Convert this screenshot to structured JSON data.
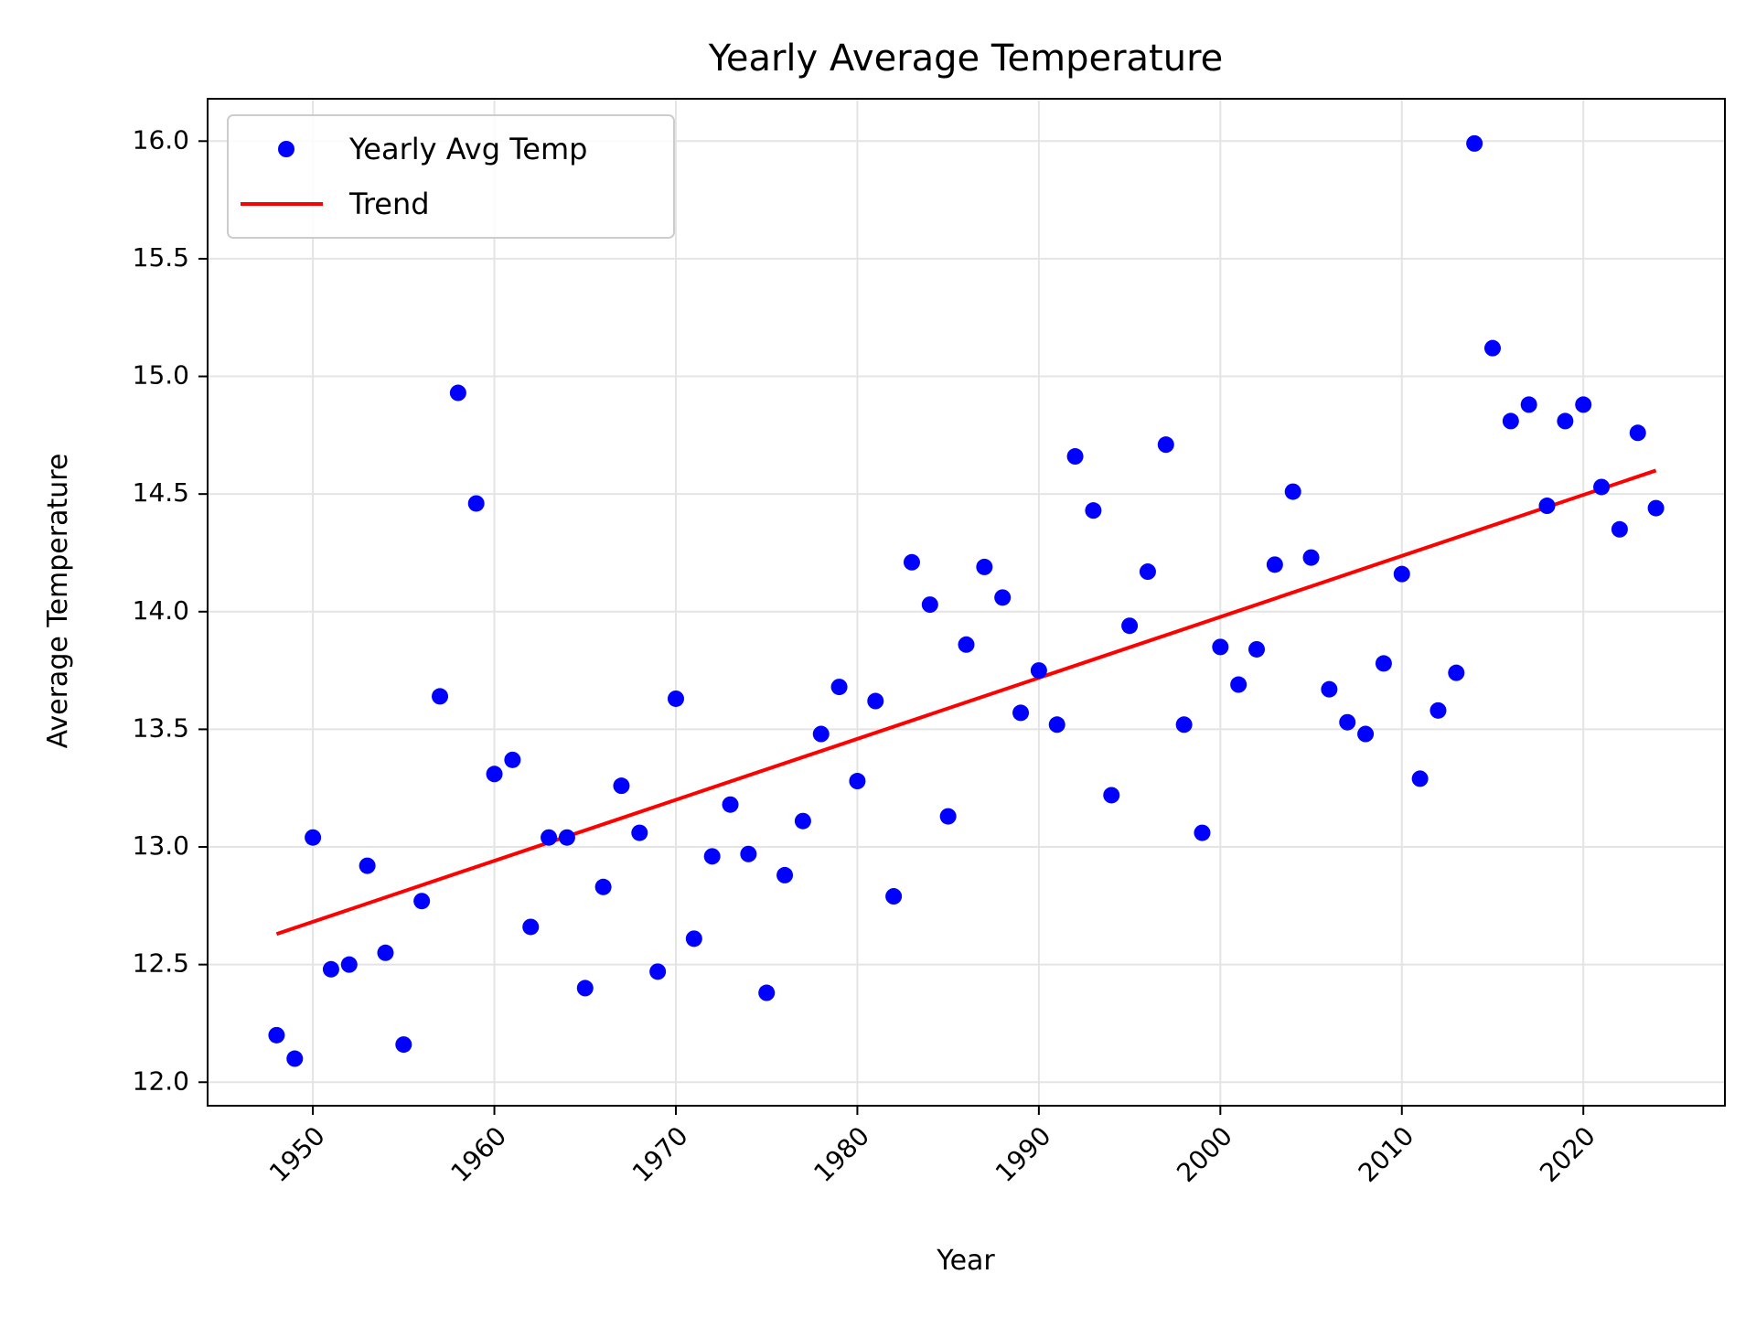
{
  "chart_data": {
    "type": "scatter",
    "title": "Yearly Average Temperature",
    "xlabel": "Year",
    "ylabel": "Average Temperature",
    "xlim": [
      1944.2,
      2027.8
    ],
    "ylim": [
      11.9,
      16.18
    ],
    "xticks": [
      1950,
      1960,
      1970,
      1980,
      1990,
      2000,
      2010,
      2020
    ],
    "yticks": [
      "12.0",
      "12.5",
      "13.0",
      "13.5",
      "14.0",
      "14.5",
      "15.0",
      "15.5",
      "16.0"
    ],
    "grid": true,
    "legend_position": "top-left",
    "series": [
      {
        "name": "Yearly Avg Temp",
        "kind": "scatter",
        "color": "#0000ff",
        "x": [
          1948,
          1949,
          1950,
          1951,
          1952,
          1953,
          1954,
          1955,
          1956,
          1957,
          1958,
          1959,
          1960,
          1961,
          1962,
          1963,
          1964,
          1965,
          1966,
          1967,
          1968,
          1969,
          1970,
          1971,
          1972,
          1973,
          1974,
          1975,
          1976,
          1977,
          1978,
          1979,
          1980,
          1981,
          1982,
          1983,
          1984,
          1985,
          1986,
          1987,
          1988,
          1989,
          1990,
          1991,
          1992,
          1993,
          1994,
          1995,
          1996,
          1997,
          1998,
          1999,
          2000,
          2001,
          2002,
          2003,
          2004,
          2005,
          2006,
          2007,
          2008,
          2009,
          2010,
          2011,
          2012,
          2013,
          2014,
          2015,
          2016,
          2017,
          2018,
          2019,
          2020,
          2021,
          2022,
          2023,
          2024
        ],
        "y": [
          12.2,
          12.1,
          13.04,
          12.48,
          12.5,
          12.92,
          12.55,
          12.16,
          12.77,
          13.64,
          14.93,
          14.46,
          13.31,
          13.37,
          12.66,
          13.04,
          13.04,
          12.4,
          12.83,
          13.26,
          13.06,
          12.47,
          13.63,
          12.61,
          12.96,
          13.18,
          12.97,
          12.38,
          12.88,
          13.11,
          13.48,
          13.68,
          13.28,
          13.62,
          12.79,
          14.21,
          14.03,
          13.13,
          13.86,
          14.19,
          14.06,
          13.57,
          13.75,
          13.52,
          14.66,
          14.43,
          13.22,
          13.94,
          14.17,
          14.71,
          13.52,
          13.06,
          13.85,
          13.69,
          13.84,
          14.2,
          14.51,
          14.23,
          13.67,
          13.53,
          13.48,
          13.78,
          14.16,
          13.29,
          13.58,
          13.74,
          15.99,
          15.12,
          14.81,
          14.88,
          14.45,
          14.81,
          14.88,
          14.53,
          14.35,
          14.76,
          14.44
        ]
      },
      {
        "name": "Trend",
        "kind": "line",
        "color": "#ff0000",
        "x": [
          1948,
          2024
        ],
        "y": [
          12.63,
          14.6
        ]
      }
    ]
  }
}
